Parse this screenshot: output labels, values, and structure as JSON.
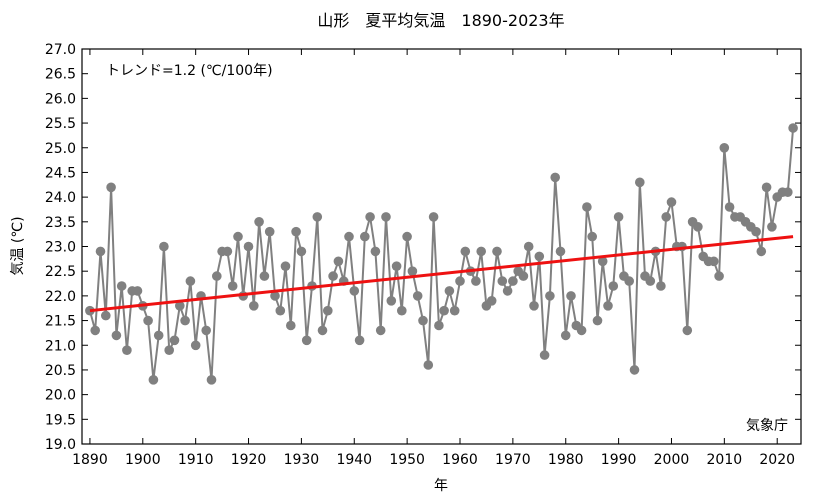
{
  "chart_data": {
    "type": "line",
    "title": "山形　夏平均気温　1890-2023年",
    "xlabel": "年",
    "ylabel": "気温 (℃)",
    "xlim": [
      1888.5,
      2024.5
    ],
    "ylim": [
      19.0,
      27.0
    ],
    "x_ticks": [
      1890,
      1900,
      1910,
      1920,
      1930,
      1940,
      1950,
      1960,
      1970,
      1980,
      1990,
      2000,
      2010,
      2020
    ],
    "y_ticks": [
      19.0,
      19.5,
      20.0,
      20.5,
      21.0,
      21.5,
      22.0,
      22.5,
      23.0,
      23.5,
      24.0,
      24.5,
      25.0,
      25.5,
      26.0,
      26.5,
      27.0
    ],
    "grid": false,
    "annotations": {
      "trend": "トレンド=1.2 (℃/100年)",
      "source": "気象庁"
    },
    "colors": {
      "series": "#808080",
      "trend": "#ee1111"
    },
    "x_start": 1890,
    "values": [
      21.7,
      21.3,
      22.9,
      21.6,
      24.2,
      21.2,
      22.2,
      20.9,
      22.1,
      22.1,
      21.8,
      21.5,
      20.3,
      21.2,
      23.0,
      20.9,
      21.1,
      21.8,
      21.5,
      22.3,
      21.0,
      22.0,
      21.3,
      20.3,
      22.4,
      22.9,
      22.9,
      22.2,
      23.2,
      22.0,
      23.0,
      21.8,
      23.5,
      22.4,
      23.3,
      22.0,
      21.7,
      22.6,
      21.4,
      23.3,
      22.9,
      21.1,
      22.2,
      23.6,
      21.3,
      21.7,
      22.4,
      22.7,
      22.3,
      23.2,
      22.1,
      21.1,
      23.2,
      23.6,
      22.9,
      21.3,
      23.6,
      21.9,
      22.6,
      21.7,
      23.2,
      22.5,
      22.0,
      21.5,
      20.6,
      23.6,
      21.4,
      21.7,
      22.1,
      21.7,
      22.3,
      22.9,
      22.5,
      22.3,
      22.9,
      21.8,
      21.9,
      22.9,
      22.3,
      22.1,
      22.3,
      22.5,
      22.4,
      23.0,
      21.8,
      22.8,
      20.8,
      22.0,
      24.4,
      22.9,
      21.2,
      22.0,
      21.4,
      21.3,
      23.8,
      23.2,
      21.5,
      22.7,
      21.8,
      22.2,
      23.6,
      22.4,
      22.3,
      20.5,
      24.3,
      22.4,
      22.3,
      22.9,
      22.2,
      23.6,
      23.9,
      23.0,
      23.0,
      21.3,
      23.5,
      23.4,
      22.8,
      22.7,
      22.7,
      22.4,
      25.0,
      23.8,
      23.6,
      23.6,
      23.5,
      23.4,
      23.3,
      22.9,
      24.2,
      23.4,
      24.0,
      24.1,
      24.1,
      25.4
    ],
    "trend": {
      "from": [
        1890,
        21.7
      ],
      "to": [
        2023,
        23.2
      ]
    }
  }
}
